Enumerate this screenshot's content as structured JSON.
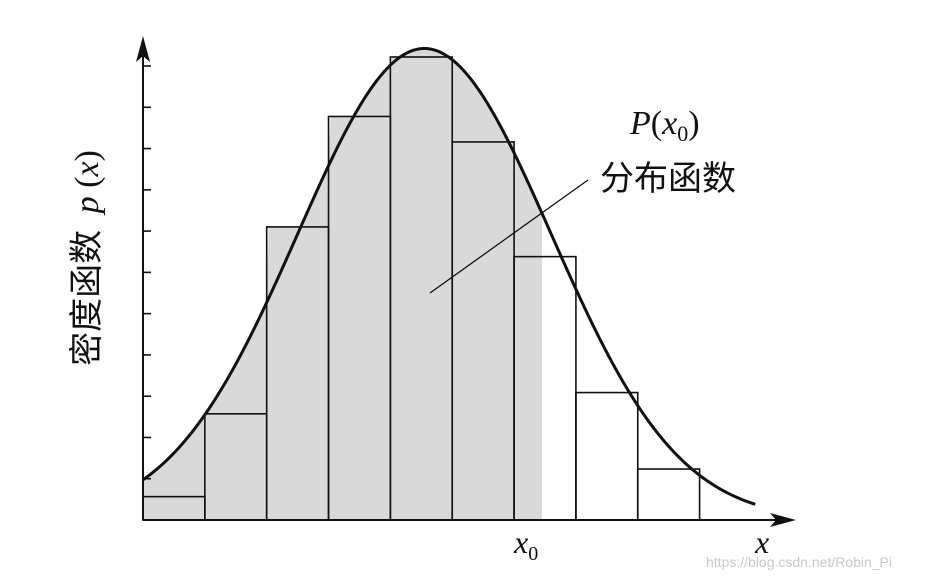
{
  "chart_data": {
    "type": "bar",
    "title": "",
    "ylabel": "密度函数 p(x)",
    "xlabel": "x",
    "bin_edges": [
      0,
      1,
      2,
      3,
      4,
      5,
      6,
      7,
      8,
      9,
      10
    ],
    "bar_heights": [
      0.55,
      2.5,
      6.9,
      9.5,
      10.9,
      8.9,
      6.2,
      3.0,
      1.2,
      0.0
    ],
    "curve": {
      "description_points_x": [
        0,
        1,
        2,
        3,
        4,
        5,
        6,
        7,
        8,
        9,
        10
      ],
      "peak_x": 4.55,
      "peak_y": 11.1
    },
    "shaded_until_x": 6.45,
    "x0_position": 6.05,
    "ylim": [
      0,
      11.3
    ],
    "xlim": [
      0,
      10.3
    ],
    "grid": false,
    "y_ticks_count": 11
  },
  "labels": {
    "ylabel_text": "密度函数",
    "ylabel_var_p": "p",
    "ylabel_var_x": "x",
    "annot_P": "P",
    "annot_x": "x",
    "annot_sub": "0",
    "annot_cn": "分布函数",
    "x0_x": "x",
    "x0_sub": "0",
    "axis_x": "x",
    "watermark": "https://blog.csdn.net/Robin_Pi"
  }
}
